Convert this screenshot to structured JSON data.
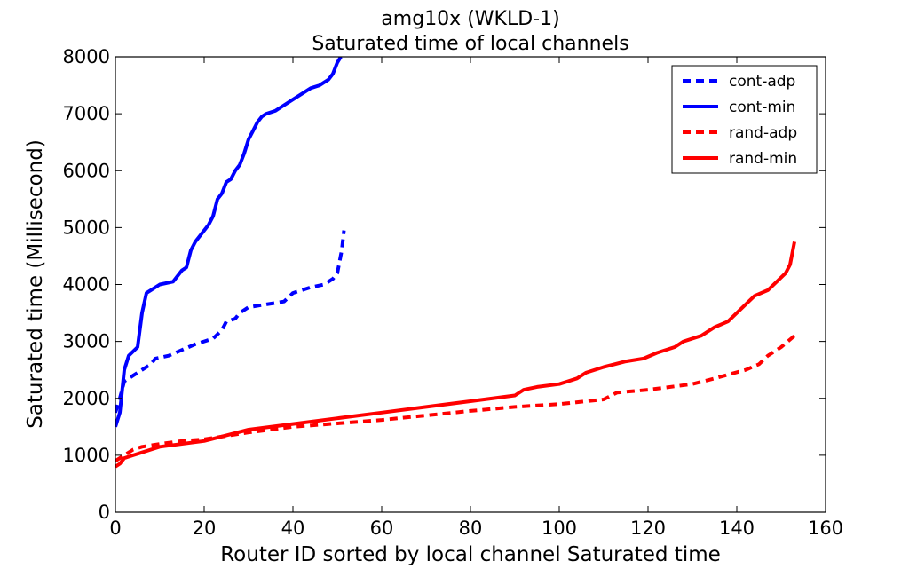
{
  "chart_data": {
    "type": "line",
    "title": "amg10x  (WKLD-1)",
    "subtitle": "Saturated time of local channels",
    "xlabel": "Router ID sorted by local channel Saturated time",
    "ylabel": "Saturated time (Millisecond)",
    "xlim": [
      0,
      160
    ],
    "ylim": [
      0,
      8000
    ],
    "xticks": [
      0,
      20,
      40,
      60,
      80,
      100,
      120,
      140,
      160
    ],
    "yticks": [
      0,
      1000,
      2000,
      3000,
      4000,
      5000,
      6000,
      7000,
      8000
    ],
    "grid": false,
    "legend_position": "top-right",
    "series": [
      {
        "name": "cont-adp",
        "color": "#0000ff",
        "style": "dashed",
        "points": [
          [
            0,
            1750
          ],
          [
            1,
            2000
          ],
          [
            2,
            2300
          ],
          [
            4,
            2400
          ],
          [
            6,
            2500
          ],
          [
            8,
            2600
          ],
          [
            9,
            2700
          ],
          [
            12,
            2750
          ],
          [
            15,
            2850
          ],
          [
            18,
            2950
          ],
          [
            20,
            3000
          ],
          [
            22,
            3050
          ],
          [
            24,
            3200
          ],
          [
            25,
            3350
          ],
          [
            27,
            3400
          ],
          [
            28,
            3500
          ],
          [
            30,
            3600
          ],
          [
            34,
            3650
          ],
          [
            38,
            3700
          ],
          [
            40,
            3850
          ],
          [
            42,
            3900
          ],
          [
            44,
            3950
          ],
          [
            47,
            4000
          ],
          [
            49,
            4100
          ],
          [
            50,
            4200
          ],
          [
            51,
            4600
          ],
          [
            51.5,
            4950
          ]
        ]
      },
      {
        "name": "cont-min",
        "color": "#0000ff",
        "style": "solid",
        "points": [
          [
            0,
            1500
          ],
          [
            1,
            1750
          ],
          [
            2,
            2500
          ],
          [
            3,
            2750
          ],
          [
            5,
            2900
          ],
          [
            6,
            3500
          ],
          [
            7,
            3850
          ],
          [
            8,
            3900
          ],
          [
            10,
            4000
          ],
          [
            13,
            4050
          ],
          [
            15,
            4250
          ],
          [
            16,
            4300
          ],
          [
            17,
            4600
          ],
          [
            18,
            4750
          ],
          [
            20,
            4950
          ],
          [
            21,
            5050
          ],
          [
            22,
            5200
          ],
          [
            23,
            5500
          ],
          [
            24,
            5600
          ],
          [
            25,
            5800
          ],
          [
            26,
            5850
          ],
          [
            27,
            6000
          ],
          [
            28,
            6100
          ],
          [
            29,
            6300
          ],
          [
            30,
            6550
          ],
          [
            31,
            6700
          ],
          [
            32,
            6850
          ],
          [
            33,
            6950
          ],
          [
            34,
            7000
          ],
          [
            36,
            7050
          ],
          [
            38,
            7150
          ],
          [
            40,
            7250
          ],
          [
            42,
            7350
          ],
          [
            44,
            7450
          ],
          [
            46,
            7500
          ],
          [
            48,
            7600
          ],
          [
            49,
            7700
          ],
          [
            50,
            7900
          ],
          [
            50.8,
            8000
          ]
        ]
      },
      {
        "name": "rand-adp",
        "color": "#ff0000",
        "style": "dashed",
        "points": [
          [
            0,
            900
          ],
          [
            2,
            1000
          ],
          [
            4,
            1100
          ],
          [
            6,
            1150
          ],
          [
            10,
            1200
          ],
          [
            15,
            1250
          ],
          [
            20,
            1280
          ],
          [
            30,
            1400
          ],
          [
            40,
            1500
          ],
          [
            50,
            1560
          ],
          [
            60,
            1620
          ],
          [
            70,
            1700
          ],
          [
            80,
            1780
          ],
          [
            90,
            1850
          ],
          [
            100,
            1900
          ],
          [
            110,
            1980
          ],
          [
            113,
            2100
          ],
          [
            120,
            2150
          ],
          [
            130,
            2250
          ],
          [
            135,
            2350
          ],
          [
            142,
            2500
          ],
          [
            145,
            2600
          ],
          [
            147,
            2750
          ],
          [
            150,
            2900
          ],
          [
            153,
            3100
          ]
        ]
      },
      {
        "name": "rand-min",
        "color": "#ff0000",
        "style": "solid",
        "points": [
          [
            0,
            800
          ],
          [
            1,
            850
          ],
          [
            2,
            950
          ],
          [
            4,
            1000
          ],
          [
            6,
            1050
          ],
          [
            8,
            1100
          ],
          [
            10,
            1150
          ],
          [
            20,
            1250
          ],
          [
            25,
            1350
          ],
          [
            30,
            1450
          ],
          [
            40,
            1550
          ],
          [
            50,
            1650
          ],
          [
            60,
            1750
          ],
          [
            70,
            1850
          ],
          [
            80,
            1950
          ],
          [
            90,
            2050
          ],
          [
            92,
            2150
          ],
          [
            95,
            2200
          ],
          [
            100,
            2250
          ],
          [
            104,
            2350
          ],
          [
            106,
            2450
          ],
          [
            110,
            2550
          ],
          [
            115,
            2650
          ],
          [
            119,
            2700
          ],
          [
            122,
            2800
          ],
          [
            126,
            2900
          ],
          [
            128,
            3000
          ],
          [
            132,
            3100
          ],
          [
            135,
            3250
          ],
          [
            138,
            3350
          ],
          [
            140,
            3500
          ],
          [
            142,
            3650
          ],
          [
            144,
            3800
          ],
          [
            147,
            3900
          ],
          [
            149,
            4050
          ],
          [
            151,
            4200
          ],
          [
            152,
            4350
          ],
          [
            153,
            4750
          ]
        ]
      }
    ]
  }
}
